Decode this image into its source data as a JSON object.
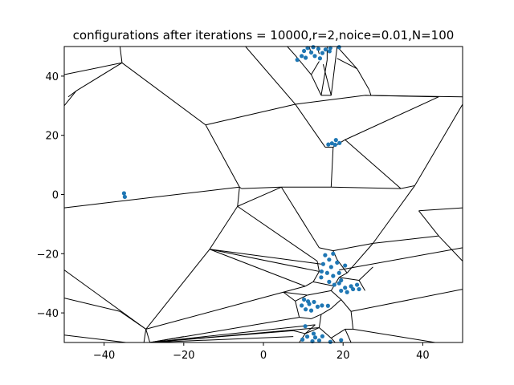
{
  "chart_data": {
    "type": "scatter",
    "title": "configurations after iterations = 10000,r=2,noice=0.01,N=100",
    "xlabel": "",
    "ylabel": "",
    "xlim": [
      -50,
      50
    ],
    "ylim": [
      -50,
      50
    ],
    "x_ticks": [
      -40,
      -20,
      0,
      20,
      40
    ],
    "y_ticks": [
      -40,
      -20,
      0,
      20,
      40
    ],
    "grid": false,
    "legend": "none",
    "point_color": "#1f77b4",
    "edge_color": "#000000",
    "points": [
      [
        -35.0,
        0.4
      ],
      [
        -34.8,
        -0.8
      ],
      [
        18.2,
        18.4
      ],
      [
        17.2,
        17.3
      ],
      [
        19.1,
        17.4
      ],
      [
        18.0,
        16.8
      ],
      [
        16.3,
        16.9
      ],
      [
        8.5,
        45.5
      ],
      [
        9.6,
        46.8
      ],
      [
        10.2,
        48.5
      ],
      [
        11.1,
        49.5
      ],
      [
        12.0,
        48.0
      ],
      [
        12.9,
        46.8
      ],
      [
        13.8,
        49.2
      ],
      [
        14.8,
        47.8
      ],
      [
        15.6,
        49.0
      ],
      [
        16.6,
        48.4
      ],
      [
        10.6,
        46.2
      ],
      [
        12.5,
        49.8
      ],
      [
        14.2,
        46.0
      ],
      [
        16.8,
        49.5
      ],
      [
        19.0,
        49.8
      ],
      [
        15.5,
        -20.5
      ],
      [
        16.5,
        -22.0
      ],
      [
        17.5,
        -20.0
      ],
      [
        15.0,
        -23.5
      ],
      [
        17.0,
        -24.5
      ],
      [
        18.5,
        -23.0
      ],
      [
        20.5,
        -24.0
      ],
      [
        19.0,
        -26.5
      ],
      [
        16.0,
        -26.5
      ],
      [
        17.5,
        -27.5
      ],
      [
        14.6,
        -26.0
      ],
      [
        14.5,
        -28.0
      ],
      [
        16.5,
        -29.5
      ],
      [
        17.8,
        -30.5
      ],
      [
        19.0,
        -30.0
      ],
      [
        20.5,
        -31.5
      ],
      [
        19.5,
        -32.5
      ],
      [
        21.0,
        -33.0
      ],
      [
        22.0,
        -31.0
      ],
      [
        23.5,
        -30.5
      ],
      [
        24.0,
        -32.0
      ],
      [
        22.5,
        -32.0
      ],
      [
        19.5,
        -29.0
      ],
      [
        10.2,
        -35.5
      ],
      [
        11.5,
        -37.0
      ],
      [
        10.6,
        -38.8
      ],
      [
        12.7,
        -36.3
      ],
      [
        13.6,
        -37.9
      ],
      [
        12.0,
        -39.2
      ],
      [
        9.6,
        -37.5
      ],
      [
        14.7,
        -37.5
      ],
      [
        16.2,
        -37.6
      ],
      [
        11.2,
        -36.1
      ],
      [
        10.5,
        -44.5
      ],
      [
        9.8,
        -49.0
      ],
      [
        11.0,
        -48.0
      ],
      [
        12.3,
        -49.6
      ],
      [
        13.0,
        -48.3
      ],
      [
        14.0,
        -49.3
      ],
      [
        14.8,
        -47.9
      ],
      [
        12.6,
        -47.0
      ],
      [
        16.8,
        -49.8
      ],
      [
        19.5,
        -49.2
      ]
    ],
    "voronoi_edges": [
      [
        [
          -50.0,
          30.0
        ],
        [
          -47.0,
          35.0
        ]
      ],
      [
        [
          -47.0,
          35.0
        ],
        [
          -49.0,
          33.0
        ]
      ],
      [
        [
          -47.0,
          35.0
        ],
        [
          -35.5,
          44.5
        ]
      ],
      [
        [
          -35.5,
          44.5
        ],
        [
          -50.0,
          40.5
        ]
      ],
      [
        [
          -35.5,
          44.5
        ],
        [
          -36.0,
          50.0
        ]
      ],
      [
        [
          -35.5,
          44.5
        ],
        [
          -14.5,
          23.5
        ]
      ],
      [
        [
          -14.5,
          23.5
        ],
        [
          -6.0,
          2.5
        ]
      ],
      [
        [
          -50.0,
          -4.5
        ],
        [
          -6.0,
          2.5
        ]
      ],
      [
        [
          -14.5,
          23.5
        ],
        [
          8.0,
          30.5
        ]
      ],
      [
        [
          8.0,
          30.5
        ],
        [
          25.5,
          33.5
        ]
      ],
      [
        [
          25.5,
          33.5
        ],
        [
          50.0,
          33.0
        ]
      ],
      [
        [
          25.5,
          33.5
        ],
        [
          44.0,
          33.0
        ]
      ],
      [
        [
          -6.0,
          2.5
        ],
        [
          -5.5,
          2.0
        ]
      ],
      [
        [
          -5.5,
          2.0
        ],
        [
          4.5,
          2.5
        ]
      ],
      [
        [
          4.5,
          2.5
        ],
        [
          17.0,
          2.5
        ]
      ],
      [
        [
          17.0,
          2.5
        ],
        [
          34.5,
          2.0
        ]
      ],
      [
        [
          34.5,
          2.0
        ],
        [
          38.0,
          3.0
        ]
      ],
      [
        [
          38.0,
          3.0
        ],
        [
          50.0,
          30.5
        ]
      ],
      [
        [
          17.0,
          2.5
        ],
        [
          17.5,
          16.0
        ]
      ],
      [
        [
          17.5,
          16.0
        ],
        [
          20.5,
          18.5
        ]
      ],
      [
        [
          20.5,
          18.5
        ],
        [
          34.5,
          2.0
        ]
      ],
      [
        [
          20.5,
          18.5
        ],
        [
          44.0,
          33.0
        ]
      ],
      [
        [
          15.5,
          16.0
        ],
        [
          17.5,
          16.0
        ]
      ],
      [
        [
          15.5,
          16.0
        ],
        [
          8.0,
          30.5
        ]
      ],
      [
        [
          -4.5,
          50.0
        ],
        [
          8.0,
          30.5
        ]
      ],
      [
        [
          -4.5,
          50.0
        ],
        [
          -3.0,
          50.0
        ]
      ],
      [
        [
          12.0,
          40.5
        ],
        [
          14.5,
          33.5
        ]
      ],
      [
        [
          14.5,
          33.5
        ],
        [
          17.0,
          33.5
        ]
      ],
      [
        [
          17.0,
          33.5
        ],
        [
          18.5,
          50.0
        ]
      ],
      [
        [
          14.5,
          33.5
        ],
        [
          16.0,
          45.5
        ]
      ],
      [
        [
          16.0,
          45.5
        ],
        [
          16.0,
          50.0
        ]
      ],
      [
        [
          17.0,
          33.5
        ],
        [
          15.0,
          44.0
        ]
      ],
      [
        [
          18.5,
          50.0
        ],
        [
          23.5,
          42.5
        ]
      ],
      [
        [
          23.5,
          42.5
        ],
        [
          26.5,
          35.5
        ]
      ],
      [
        [
          23.5,
          42.5
        ],
        [
          18.5,
          46.0
        ]
      ],
      [
        [
          26.5,
          35.5
        ],
        [
          27.0,
          33.5
        ]
      ],
      [
        [
          6.0,
          50.0
        ],
        [
          8.0,
          47.0
        ]
      ],
      [
        [
          8.0,
          47.0
        ],
        [
          12.0,
          40.5
        ]
      ],
      [
        [
          12.0,
          40.5
        ],
        [
          14.0,
          45.0
        ]
      ],
      [
        [
          11.5,
          50.0
        ],
        [
          12.0,
          47.5
        ]
      ],
      [
        [
          13.5,
          50.0
        ],
        [
          14.0,
          47.5
        ]
      ],
      [
        [
          -6.0,
          2.5
        ],
        [
          -6.5,
          -4.0
        ]
      ],
      [
        [
          -6.5,
          -4.0
        ],
        [
          -13.5,
          -18.5
        ]
      ],
      [
        [
          -13.5,
          -18.5
        ],
        [
          -29.5,
          -45.5
        ]
      ],
      [
        [
          -29.5,
          -45.5
        ],
        [
          -50.0,
          -25.5
        ]
      ],
      [
        [
          -50.0,
          -35.0
        ],
        [
          -36.0,
          -39.5
        ]
      ],
      [
        [
          -36.0,
          -39.5
        ],
        [
          -29.5,
          -45.5
        ]
      ],
      [
        [
          -29.5,
          -45.5
        ],
        [
          -30.0,
          -50.0
        ]
      ],
      [
        [
          -50.0,
          -47.5
        ],
        [
          -34.5,
          -50.0
        ]
      ],
      [
        [
          -6.5,
          -4.0
        ],
        [
          4.5,
          2.5
        ]
      ],
      [
        [
          4.5,
          2.5
        ],
        [
          14.0,
          -18.0
        ]
      ],
      [
        [
          14.0,
          -18.0
        ],
        [
          17.5,
          -19.0
        ]
      ],
      [
        [
          17.5,
          -19.0
        ],
        [
          27.5,
          -16.5
        ]
      ],
      [
        [
          27.5,
          -16.5
        ],
        [
          38.0,
          3.0
        ]
      ],
      [
        [
          27.5,
          -16.5
        ],
        [
          44.0,
          -14.0
        ]
      ],
      [
        [
          44.0,
          -14.0
        ],
        [
          50.0,
          -22.5
        ]
      ],
      [
        [
          39.0,
          -5.5
        ],
        [
          50.0,
          -4.5
        ]
      ],
      [
        [
          39.0,
          -5.5
        ],
        [
          44.0,
          -14.0
        ]
      ],
      [
        [
          -13.5,
          -18.5
        ],
        [
          14.0,
          -26.0
        ]
      ],
      [
        [
          -13.5,
          -18.5
        ],
        [
          14.5,
          -23.5
        ]
      ],
      [
        [
          -6.5,
          -4.0
        ],
        [
          13.5,
          -22.5
        ]
      ],
      [
        [
          13.5,
          -22.5
        ],
        [
          14.0,
          -26.0
        ]
      ],
      [
        [
          14.0,
          -26.0
        ],
        [
          12.5,
          -29.5
        ]
      ],
      [
        [
          -13.5,
          -18.5
        ],
        [
          10.5,
          -31.0
        ]
      ],
      [
        [
          10.5,
          -31.0
        ],
        [
          12.5,
          -29.5
        ]
      ],
      [
        [
          10.5,
          -31.0
        ],
        [
          5.0,
          -33.0
        ]
      ],
      [
        [
          5.0,
          -33.0
        ],
        [
          -29.5,
          -45.5
        ]
      ],
      [
        [
          -29.5,
          -45.5
        ],
        [
          -28.5,
          -50.0
        ]
      ],
      [
        [
          -28.5,
          -50.0
        ],
        [
          9.0,
          -41.5
        ]
      ],
      [
        [
          -28.5,
          -50.0
        ],
        [
          13.0,
          -44.0
        ]
      ],
      [
        [
          -28.5,
          -50.0
        ],
        [
          14.0,
          -45.0
        ]
      ],
      [
        [
          -28.5,
          -50.0
        ],
        [
          7.5,
          -46.0
        ]
      ],
      [
        [
          -28.5,
          -50.0
        ],
        [
          7.5,
          -48.0
        ]
      ],
      [
        [
          -28.5,
          -50.0
        ],
        [
          -20.0,
          -48.0
        ]
      ],
      [
        [
          5.0,
          -33.0
        ],
        [
          11.0,
          -34.0
        ]
      ],
      [
        [
          11.0,
          -34.0
        ],
        [
          17.0,
          -32.5
        ]
      ],
      [
        [
          17.0,
          -32.5
        ],
        [
          19.5,
          -35.5
        ]
      ],
      [
        [
          19.5,
          -35.5
        ],
        [
          22.0,
          -39.5
        ]
      ],
      [
        [
          22.0,
          -39.5
        ],
        [
          22.5,
          -45.5
        ]
      ],
      [
        [
          22.5,
          -45.5
        ],
        [
          50.0,
          -51.5
        ]
      ],
      [
        [
          22.0,
          -39.5
        ],
        [
          50.0,
          -32.0
        ]
      ],
      [
        [
          19.0,
          -25.5
        ],
        [
          50.0,
          -18.0
        ]
      ],
      [
        [
          17.5,
          -19.0
        ],
        [
          18.5,
          -22.0
        ]
      ],
      [
        [
          18.5,
          -22.0
        ],
        [
          21.0,
          -26.5
        ]
      ],
      [
        [
          21.0,
          -26.5
        ],
        [
          27.5,
          -16.5
        ]
      ],
      [
        [
          21.0,
          -26.5
        ],
        [
          19.0,
          -28.0
        ]
      ],
      [
        [
          19.0,
          -28.0
        ],
        [
          17.0,
          -32.5
        ]
      ],
      [
        [
          19.0,
          -28.0
        ],
        [
          24.0,
          -29.0
        ]
      ],
      [
        [
          24.0,
          -29.0
        ],
        [
          25.5,
          -32.5
        ]
      ],
      [
        [
          24.0,
          -29.0
        ],
        [
          27.5,
          -24.5
        ]
      ],
      [
        [
          19.5,
          -35.5
        ],
        [
          17.0,
          -38.5
        ]
      ],
      [
        [
          17.0,
          -38.5
        ],
        [
          14.5,
          -40.5
        ]
      ],
      [
        [
          14.5,
          -40.5
        ],
        [
          12.0,
          -42.0
        ]
      ],
      [
        [
          12.0,
          -42.0
        ],
        [
          9.0,
          -41.5
        ]
      ],
      [
        [
          9.0,
          -41.5
        ],
        [
          8.0,
          -36.0
        ]
      ],
      [
        [
          8.0,
          -36.0
        ],
        [
          11.0,
          -34.0
        ]
      ],
      [
        [
          8.0,
          -36.0
        ],
        [
          5.0,
          -33.0
        ]
      ],
      [
        [
          14.5,
          -40.5
        ],
        [
          14.0,
          -45.0
        ]
      ],
      [
        [
          14.0,
          -45.0
        ],
        [
          17.0,
          -48.5
        ]
      ],
      [
        [
          17.0,
          -48.5
        ],
        [
          18.0,
          -50.0
        ]
      ],
      [
        [
          14.0,
          -45.0
        ],
        [
          10.5,
          -47.0
        ]
      ],
      [
        [
          10.5,
          -47.0
        ],
        [
          9.0,
          -50.0
        ]
      ],
      [
        [
          10.5,
          -47.0
        ],
        [
          13.0,
          -44.0
        ]
      ],
      [
        [
          17.0,
          -48.5
        ],
        [
          20.5,
          -45.5
        ]
      ],
      [
        [
          20.5,
          -45.5
        ],
        [
          22.0,
          -50.0
        ]
      ],
      [
        [
          20.5,
          -45.5
        ],
        [
          22.5,
          -45.5
        ]
      ],
      [
        [
          7.5,
          -46.0
        ],
        [
          10.5,
          -47.0
        ]
      ],
      [
        [
          12.5,
          -29.5
        ],
        [
          18.0,
          -31.0
        ]
      ]
    ]
  }
}
